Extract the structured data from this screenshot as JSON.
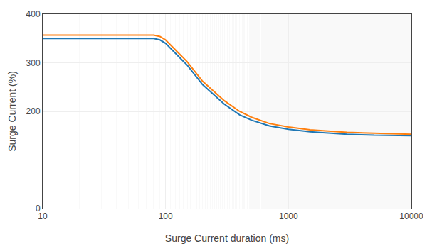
{
  "chart_data": {
    "type": "line",
    "xlabel": "Surge Current duration (ms)",
    "ylabel": "Surge Current (%)",
    "x": [
      10,
      20,
      30,
      40,
      50,
      60,
      70,
      80,
      90,
      100,
      150,
      200,
      300,
      400,
      500,
      700,
      1000,
      1500,
      2000,
      3000,
      5000,
      7000,
      10000
    ],
    "series": [
      {
        "values": [
          350,
          350,
          350,
          350,
          350,
          350,
          350,
          350,
          347,
          340,
          295,
          255,
          215,
          193,
          182,
          170,
          163,
          158,
          156,
          153,
          151,
          150,
          150
        ]
      },
      {
        "values": [
          357,
          357,
          357,
          357,
          357,
          357,
          357,
          357,
          354,
          347,
          302,
          262,
          222,
          200,
          188,
          175,
          168,
          162,
          160,
          157,
          155,
          154,
          153
        ]
      }
    ],
    "log": "x",
    "xlim": [
      10,
      10000
    ],
    "ylim": [
      0,
      400
    ],
    "xticks": [
      10,
      100,
      1000,
      10000
    ],
    "yticks": [
      0,
      {
        "value": 100,
        "label": ""
      },
      200,
      300,
      400
    ],
    "grid": true
  }
}
